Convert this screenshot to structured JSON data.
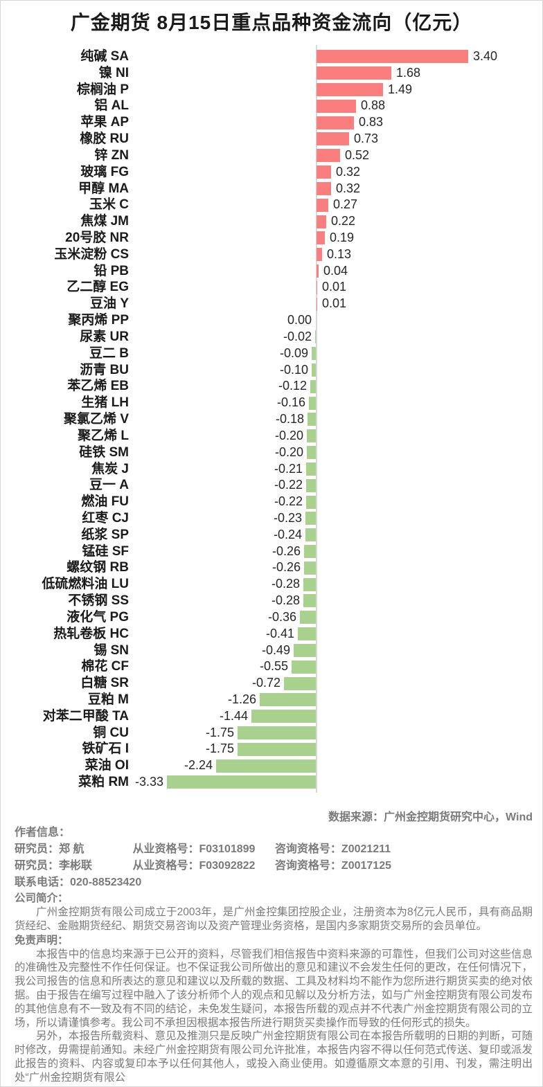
{
  "chart_data": {
    "type": "bar",
    "orientation": "horizontal",
    "title": "广金期货 8月15日重点品种资金流向（亿元）",
    "unit": "亿元",
    "grid": false,
    "legend": false,
    "xlim": [
      -3.5,
      3.5
    ],
    "positive_color": "#FB7E7E",
    "negative_color": "#A9D18E",
    "axis_color": "#D9D9D9",
    "categories": [
      "纯碱 SA",
      "镍 NI",
      "棕榈油 P",
      "铝 AL",
      "苹果 AP",
      "橡胶 RU",
      "锌 ZN",
      "玻璃 FG",
      "甲醇 MA",
      "玉米 C",
      "焦煤 JM",
      "20号胶 NR",
      "玉米淀粉 CS",
      "铅 PB",
      "乙二醇 EG",
      "豆油 Y",
      "聚丙烯 PP",
      "尿素 UR",
      "豆二 B",
      "沥青 BU",
      "苯乙烯 EB",
      "生猪 LH",
      "聚氯乙烯 V",
      "聚乙烯 L",
      "硅铁 SM",
      "焦炭 J",
      "豆一 A",
      "燃油 FU",
      "红枣 CJ",
      "纸浆 SP",
      "锰硅 SF",
      "螺纹钢 RB",
      "低硫燃料油 LU",
      "不锈钢 SS",
      "液化气 PG",
      "热轧卷板 HC",
      "锡 SN",
      "棉花 CF",
      "白糖 SR",
      "豆粕 M",
      "对苯二甲酸 TA",
      "铜 CU",
      "铁矿石 I",
      "菜油 OI",
      "菜粕 RM"
    ],
    "values": [
      3.4,
      1.68,
      1.49,
      0.88,
      0.83,
      0.73,
      0.52,
      0.32,
      0.32,
      0.27,
      0.22,
      0.19,
      0.13,
      0.04,
      0.01,
      0.01,
      0.0,
      -0.02,
      -0.09,
      -0.1,
      -0.12,
      -0.16,
      -0.18,
      -0.2,
      -0.2,
      -0.21,
      -0.22,
      -0.22,
      -0.23,
      -0.24,
      -0.26,
      -0.26,
      -0.28,
      -0.28,
      -0.36,
      -0.41,
      -0.49,
      -0.55,
      -0.72,
      -1.26,
      -1.44,
      -1.75,
      -1.75,
      -2.24,
      -3.33
    ]
  },
  "footer": {
    "source_note": "数据来源：广州金控期货研究中心，Wind",
    "author_heading": "作者信息：",
    "researchers": [
      {
        "role": "研究员：",
        "name": "郑 航",
        "cert_label": "从业资格号：",
        "cert_no": "F03101899",
        "advisory_label": "咨询资格号：",
        "advisory_no": "Z0021211"
      },
      {
        "role": "研究员：",
        "name": "李彬联",
        "cert_label": "从业资格号：",
        "cert_no": "F03092822",
        "advisory_label": "咨询资格号：",
        "advisory_no": "Z0017125"
      }
    ],
    "phone_line": "联系电话：020-88523420",
    "company_heading": "公司简介：",
    "company_intro": "广州金控期货有限公司成立于2003年，是广州金控集团控股企业，注册资本为8亿元人民币，具有商品期货经纪、金融期货经纪、期货交易咨询以及资产管理业务资格，是国内多家期货交易所的会员单位。",
    "disclaimer_heading": "免责声明：",
    "disclaimer_para1": "本报告中的信息均来源于已公开的资料，尽管我们相信报告中资料来源的可靠性，但我们公司对这些信息的准确性及完整性不作任何保证。也不保证我公司所做出的意见和建议不会发生任何的更改，在任何情况下，我公司报告的信息和所表达的意见和建议以及所载的数据、工具及材料均不能作为您所进行期货买卖的绝对依据。由于报告在编写过程中融入了该分析师个人的观点和见解以及分析方法，如与广州金控期货有限公司发布的其他信息有不一致及有不同的结论，未免发生疑问，本报告所载的观点并不代表广州金控期货有限公司的立场，所以请谨慎参考。我公司不承担因根据本报告所进行期货买卖操作而导致的任何形式的损失。",
    "disclaimer_para2": "另外，本报告所载资料、意见及推测只是反映广州金控期货有限公司在本报告所载明的日期的判断，可随时修改，毋需提前通知。未经广州金控期货有限公司允许批准，本报告内容不得以任何范式传送、复印或派发此报告的资料、内容或复印本予以任何其他人，或投入商业使用。如遵循原文本意的引用、刊发，需注明出处“广州金控期货有限公"
  }
}
